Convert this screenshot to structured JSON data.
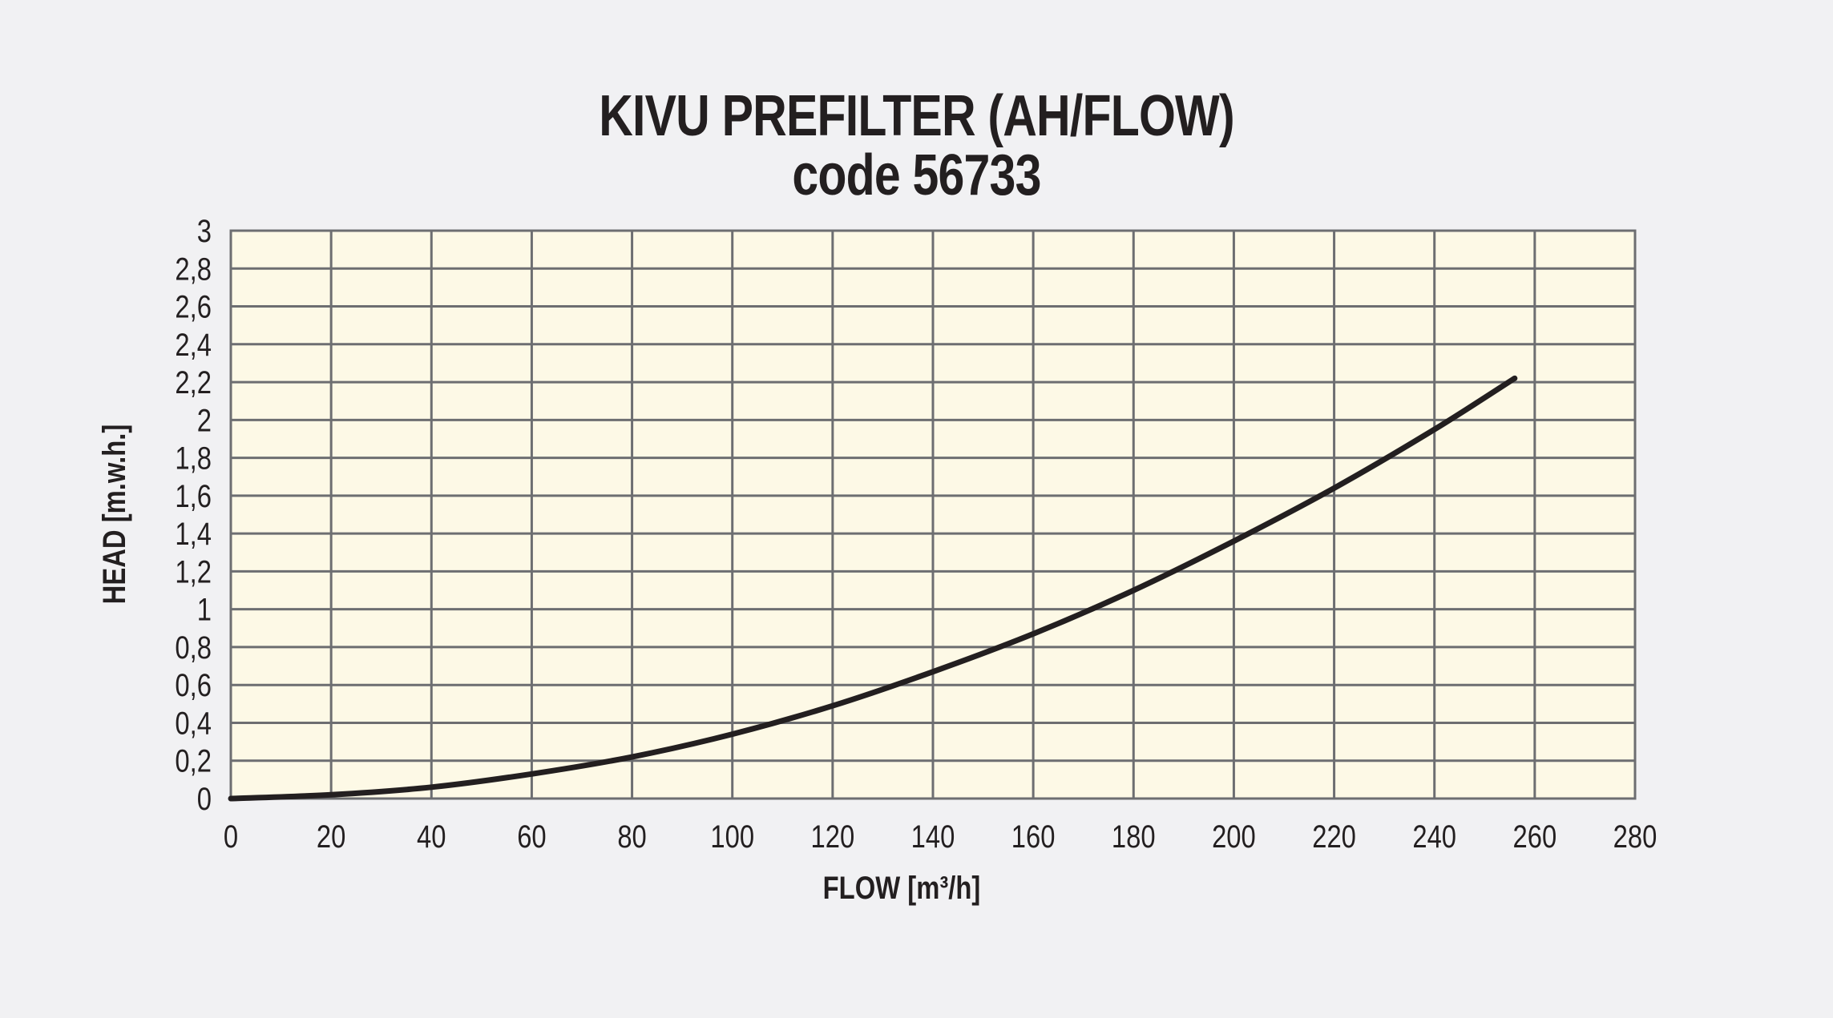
{
  "chart_data": {
    "type": "line",
    "title": "KIVU PREFILTER (AH/FLOW)",
    "subtitle": "code 56733",
    "xlabel": "FLOW [m³/h]",
    "ylabel": "HEAD [m.w.h.]",
    "xlim": [
      0,
      280
    ],
    "ylim": [
      0,
      3
    ],
    "x_ticks": [
      0,
      20,
      40,
      60,
      80,
      100,
      120,
      140,
      160,
      180,
      200,
      220,
      240,
      260,
      280
    ],
    "x_tick_labels": [
      "0",
      "20",
      "40",
      "60",
      "80",
      "100",
      "120",
      "140",
      "160",
      "180",
      "200",
      "220",
      "240",
      "260",
      "280"
    ],
    "y_ticks": [
      0,
      0.2,
      0.4,
      0.6,
      0.8,
      1,
      1.2,
      1.4,
      1.6,
      1.8,
      2,
      2.2,
      2.4,
      2.6,
      2.8,
      3
    ],
    "y_tick_labels": [
      "0",
      "0,2",
      "0,4",
      "0,6",
      "0,8",
      "1",
      "1,2",
      "1,4",
      "1,6",
      "1,8",
      "2",
      "2,2",
      "2,4",
      "2,6",
      "2,8",
      "3"
    ],
    "grid": true,
    "colors": {
      "plot_background": "#fdf9e6",
      "grid": "#6d6e71",
      "line": "#231f20",
      "page_background": "#f1f1f3"
    },
    "series": [
      {
        "x": [
          0,
          20,
          40,
          60,
          80,
          100,
          120,
          140,
          160,
          180,
          200,
          220,
          240,
          256
        ],
        "y": [
          0,
          0.02,
          0.06,
          0.13,
          0.22,
          0.34,
          0.49,
          0.67,
          0.87,
          1.1,
          1.36,
          1.64,
          1.95,
          2.22
        ]
      }
    ]
  }
}
